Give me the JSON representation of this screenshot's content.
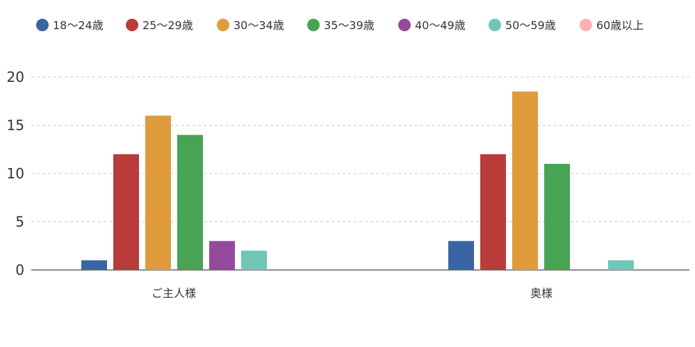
{
  "chart_data": {
    "type": "bar",
    "title": "",
    "xlabel": "",
    "ylabel": "",
    "categories": [
      "ご主人様",
      "奥様"
    ],
    "series": [
      {
        "name": "18～24歳",
        "color": "#3b64a4",
        "values": [
          1,
          3
        ]
      },
      {
        "name": "25～29歳",
        "color": "#b93c3a",
        "values": [
          12,
          12
        ]
      },
      {
        "name": "30～34歳",
        "color": "#e09b3d",
        "values": [
          16,
          18.5
        ]
      },
      {
        "name": "35～39歳",
        "color": "#48a355",
        "values": [
          14,
          11
        ]
      },
      {
        "name": "40～49歳",
        "color": "#964a9b",
        "values": [
          3,
          0
        ]
      },
      {
        "name": "50～59歳",
        "color": "#6fc5b6",
        "values": [
          2,
          1
        ]
      },
      {
        "name": "60歳以上",
        "color": "#ffb0b0",
        "values": [
          0,
          0
        ]
      }
    ],
    "yticks": [
      0,
      5,
      10,
      15,
      20
    ],
    "ylim": [
      0,
      20
    ],
    "grid": true,
    "legend_position": "top"
  }
}
